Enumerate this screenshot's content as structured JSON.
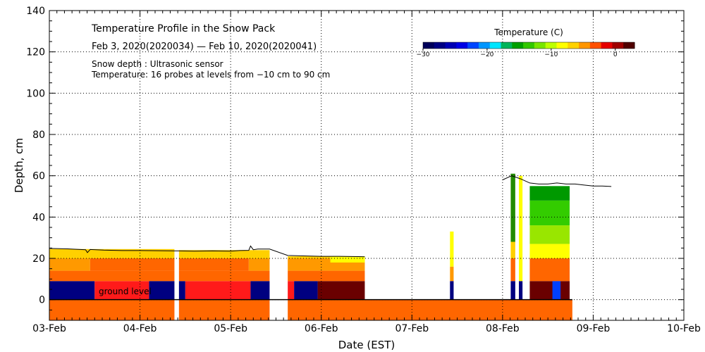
{
  "chart_data": {
    "type": "heatmap",
    "title": "Temperature Profile in the Snow Pack",
    "subtitle": "Feb  3, 2020(2020034) — Feb 10, 2020(2020041)",
    "notes": [
      "Snow depth : Ultrasonic sensor",
      "Temperature: 16 probes at levels from −10 cm to 90 cm"
    ],
    "annotation": "ground level",
    "xlabel": "Date (EST)",
    "ylabel": "Depth, cm",
    "xlim": [
      0,
      7
    ],
    "x_unit": "days since 03-Feb",
    "x_ticks": [
      {
        "value": 0,
        "label": "03-Feb"
      },
      {
        "value": 1,
        "label": "04-Feb"
      },
      {
        "value": 2,
        "label": "05-Feb"
      },
      {
        "value": 3,
        "label": "06-Feb"
      },
      {
        "value": 4,
        "label": "07-Feb"
      },
      {
        "value": 5,
        "label": "08-Feb"
      },
      {
        "value": 6,
        "label": "09-Feb"
      },
      {
        "value": 7,
        "label": "10-Feb"
      }
    ],
    "ylim": [
      -10,
      140
    ],
    "y_ticks": [
      0,
      20,
      40,
      60,
      80,
      100,
      120,
      140
    ],
    "grid": true,
    "colorbar": {
      "title": "Temperature (C)",
      "range": [
        -30,
        3
      ],
      "ticks": [
        -30,
        -20,
        -10,
        0
      ],
      "colors": [
        "#00005a",
        "#000082",
        "#0000b4",
        "#0000e6",
        "#0046ff",
        "#0096ff",
        "#00e6ff",
        "#00b45a",
        "#00a000",
        "#32c800",
        "#78e600",
        "#beff00",
        "#ffff00",
        "#ffd200",
        "#ff9600",
        "#ff5000",
        "#e60000",
        "#a00000",
        "#500000"
      ]
    },
    "cells": [
      {
        "x0": 0.0,
        "x1": 1.38,
        "y0": -10,
        "y1": 0,
        "c": "#ff6600"
      },
      {
        "x0": 1.43,
        "x1": 2.43,
        "y0": -10,
        "y1": 0,
        "c": "#ff6600"
      },
      {
        "x0": 2.63,
        "x1": 5.77,
        "y0": -10,
        "y1": 0,
        "c": "#ff6600"
      },
      {
        "x0": 0.0,
        "x1": 0.5,
        "y0": 0,
        "y1": 9,
        "c": "#000080"
      },
      {
        "x0": 0.5,
        "x1": 1.1,
        "y0": 0,
        "y1": 9,
        "c": "#ff1a1a"
      },
      {
        "x0": 1.1,
        "x1": 1.38,
        "y0": 0,
        "y1": 9,
        "c": "#000080"
      },
      {
        "x0": 1.43,
        "x1": 1.5,
        "y0": 0,
        "y1": 9,
        "c": "#000080"
      },
      {
        "x0": 1.5,
        "x1": 2.22,
        "y0": 0,
        "y1": 9,
        "c": "#ff1a1a"
      },
      {
        "x0": 2.22,
        "x1": 2.43,
        "y0": 0,
        "y1": 9,
        "c": "#000080"
      },
      {
        "x0": 2.63,
        "x1": 2.7,
        "y0": 0,
        "y1": 9,
        "c": "#ff1a1a"
      },
      {
        "x0": 2.7,
        "x1": 2.96,
        "y0": 0,
        "y1": 9,
        "c": "#000080"
      },
      {
        "x0": 2.96,
        "x1": 3.48,
        "y0": 0,
        "y1": 9,
        "c": "#6a0000"
      },
      {
        "x0": 0.0,
        "x1": 1.38,
        "y0": 9,
        "y1": 14,
        "c": "#ff6600"
      },
      {
        "x0": 1.43,
        "x1": 2.43,
        "y0": 9,
        "y1": 14,
        "c": "#ff6600"
      },
      {
        "x0": 2.63,
        "x1": 3.48,
        "y0": 9,
        "y1": 14,
        "c": "#ff6600"
      },
      {
        "x0": 0.0,
        "x1": 0.45,
        "y0": 14,
        "y1": 20,
        "c": "#ff9900"
      },
      {
        "x0": 0.45,
        "x1": 1.38,
        "y0": 14,
        "y1": 20,
        "c": "#ff6600"
      },
      {
        "x0": 1.43,
        "x1": 2.2,
        "y0": 14,
        "y1": 20,
        "c": "#ff6600"
      },
      {
        "x0": 2.2,
        "x1": 2.43,
        "y0": 14,
        "y1": 20,
        "c": "#ff9900"
      },
      {
        "x0": 2.63,
        "x1": 3.48,
        "y0": 14,
        "y1": 20,
        "c": "#ff9900"
      },
      {
        "x0": 0.0,
        "x1": 1.38,
        "y0": 20,
        "y1": 24.5,
        "c": "#ffd000"
      },
      {
        "x0": 1.43,
        "x1": 2.43,
        "y0": 20,
        "y1": 24,
        "c": "#ffd000"
      },
      {
        "x0": 2.63,
        "x1": 3.1,
        "y0": 20,
        "y1": 21,
        "c": "#ffd000"
      },
      {
        "x0": 3.1,
        "x1": 3.48,
        "y0": 18,
        "y1": 21,
        "c": "#ffff00"
      },
      {
        "x0": 4.42,
        "x1": 4.46,
        "y0": 0,
        "y1": 9,
        "c": "#000080"
      },
      {
        "x0": 4.42,
        "x1": 4.46,
        "y0": 9,
        "y1": 16,
        "c": "#ff9900"
      },
      {
        "x0": 4.42,
        "x1": 4.46,
        "y0": 16,
        "y1": 33,
        "c": "#ffff00"
      },
      {
        "x0": 5.09,
        "x1": 5.14,
        "y0": 0,
        "y1": 9,
        "c": "#000080"
      },
      {
        "x0": 5.09,
        "x1": 5.14,
        "y0": 9,
        "y1": 20,
        "c": "#ff6600"
      },
      {
        "x0": 5.09,
        "x1": 5.14,
        "y0": 20,
        "y1": 28,
        "c": "#ffd000"
      },
      {
        "x0": 5.09,
        "x1": 5.14,
        "y0": 28,
        "y1": 61,
        "c": "#228b00"
      },
      {
        "x0": 5.18,
        "x1": 5.22,
        "y0": 0,
        "y1": 9,
        "c": "#000080"
      },
      {
        "x0": 5.18,
        "x1": 5.22,
        "y0": 9,
        "y1": 60,
        "c": "#ffff00"
      },
      {
        "x0": 5.3,
        "x1": 5.74,
        "y0": 0,
        "y1": 9,
        "c": "#6a0000"
      },
      {
        "x0": 5.55,
        "x1": 5.64,
        "y0": 0,
        "y1": 9,
        "c": "#0040ff"
      },
      {
        "x0": 5.3,
        "x1": 5.74,
        "y0": 9,
        "y1": 20,
        "c": "#ff6600"
      },
      {
        "x0": 5.3,
        "x1": 5.74,
        "y0": 20,
        "y1": 27,
        "c": "#ffff00"
      },
      {
        "x0": 5.3,
        "x1": 5.74,
        "y0": 27,
        "y1": 36,
        "c": "#99e600"
      },
      {
        "x0": 5.3,
        "x1": 5.74,
        "y0": 36,
        "y1": 48,
        "c": "#33cc00"
      },
      {
        "x0": 5.3,
        "x1": 5.74,
        "y0": 48,
        "y1": 55,
        "c": "#009900"
      }
    ],
    "snow_depth_series": {
      "x": [
        0.0,
        0.2,
        0.4,
        0.42,
        0.45,
        0.6,
        0.8,
        1.0,
        1.2,
        1.38,
        1.43,
        1.6,
        1.8,
        2.0,
        2.1,
        2.2,
        2.22,
        2.25,
        2.3,
        2.43,
        2.63,
        2.8,
        3.0,
        3.2,
        3.48
      ],
      "y": [
        24.8,
        24.6,
        24.2,
        22.8,
        24.3,
        24.0,
        23.8,
        23.8,
        23.7,
        23.6,
        23.6,
        23.5,
        23.6,
        23.5,
        23.8,
        23.9,
        26.0,
        24.2,
        24.5,
        24.5,
        21.4,
        21.2,
        21.0,
        21.0,
        20.8
      ]
    },
    "snow_depth_series_2": {
      "x": [
        5.0,
        5.1,
        5.2,
        5.3,
        5.4,
        5.5,
        5.6,
        5.7,
        5.8,
        5.9,
        6.0,
        6.1,
        6.2
      ],
      "y": [
        58.0,
        60.0,
        58.5,
        56.5,
        56.0,
        56.0,
        56.5,
        56.0,
        56.0,
        55.5,
        55.0,
        55.0,
        54.8
      ]
    },
    "ground_line_x": [
      0,
      5.77
    ]
  }
}
